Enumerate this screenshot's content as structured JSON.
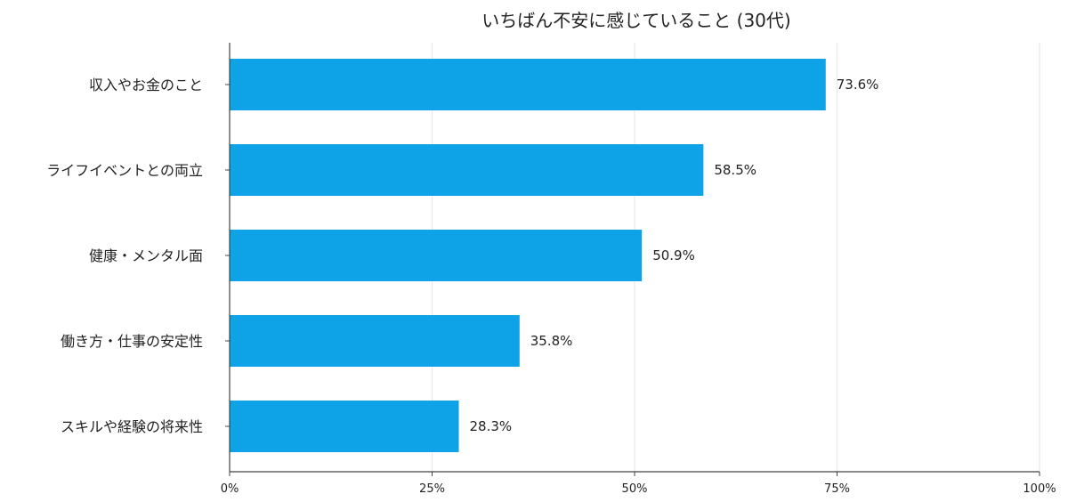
{
  "colors": {
    "bar": "#0ea2e6",
    "axis": "#444444",
    "grid": "#e6e6ee"
  },
  "chart_data": {
    "type": "bar",
    "orientation": "horizontal",
    "title": "いちばん不安に感じていること (30代)",
    "categories": [
      "収入やお金のこと",
      "ライフイベントとの両立",
      "健康・メンタル面",
      "働き方・仕事の安定性",
      "スキルや経験の将来性"
    ],
    "values": [
      73.6,
      58.5,
      50.9,
      35.8,
      28.3
    ],
    "value_labels": [
      "73.6%",
      "58.5%",
      "50.9%",
      "35.8%",
      "28.3%"
    ],
    "xlim": [
      0,
      100
    ],
    "xticks": [
      0,
      25,
      50,
      75,
      100
    ],
    "xtick_labels": [
      "0%",
      "25%",
      "50%",
      "75%",
      "100%"
    ],
    "xlabel": "",
    "ylabel": "",
    "grid": "vertical",
    "legend": "none"
  }
}
